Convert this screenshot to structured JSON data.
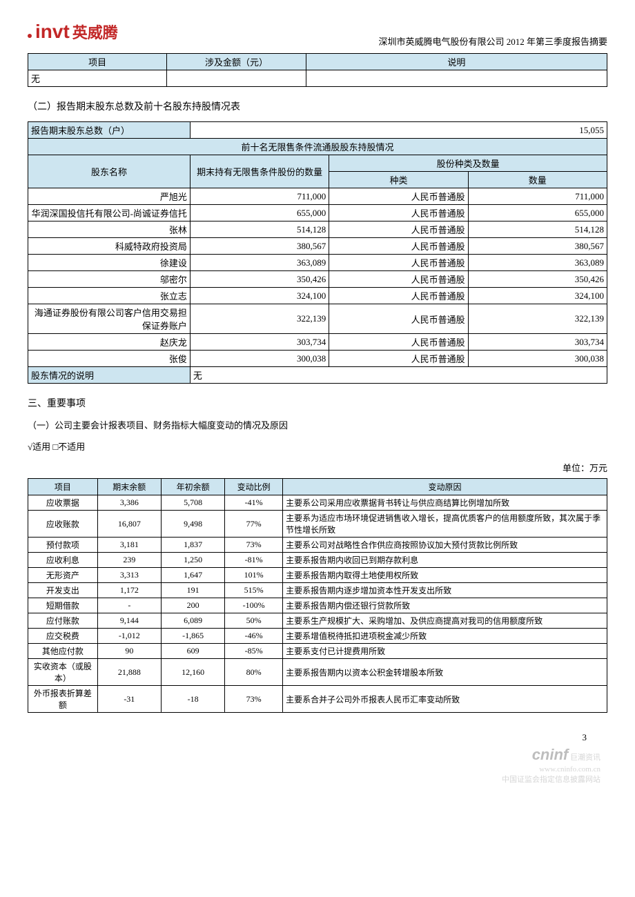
{
  "logo": {
    "en": "invt",
    "cn": "英威腾"
  },
  "doc_title": "深圳市英威腾电气股份有限公司 2012 年第三季度报告摘要",
  "table1": {
    "headers": [
      "项目",
      "涉及金额（元）",
      "说明"
    ],
    "row": [
      "无",
      "",
      ""
    ]
  },
  "section2_title": "（二）报告期末股东总数及前十名股东持股情况表",
  "table2": {
    "total_label": "报告期末股东总数（户）",
    "total_value": "15,055",
    "banner": "前十名无限售条件流通股股东持股情况",
    "col_name": "股东名称",
    "col_qty": "期末持有无限售条件股份的数量",
    "col_type_qty": "股份种类及数量",
    "col_type": "种类",
    "col_num": "数量",
    "rows": [
      {
        "name": "严旭光",
        "qty": "711,000",
        "type": "人民币普通股",
        "num": "711,000"
      },
      {
        "name": "华润深国投信托有限公司-尚诚证券信托",
        "qty": "655,000",
        "type": "人民币普通股",
        "num": "655,000"
      },
      {
        "name": "张林",
        "qty": "514,128",
        "type": "人民币普通股",
        "num": "514,128"
      },
      {
        "name": "科威特政府投资局",
        "qty": "380,567",
        "type": "人民币普通股",
        "num": "380,567"
      },
      {
        "name": "徐建设",
        "qty": "363,089",
        "type": "人民币普通股",
        "num": "363,089"
      },
      {
        "name": "邬密尔",
        "qty": "350,426",
        "type": "人民币普通股",
        "num": "350,426"
      },
      {
        "name": "张立志",
        "qty": "324,100",
        "type": "人民币普通股",
        "num": "324,100"
      },
      {
        "name": "海通证券股份有限公司客户信用交易担保证券账户",
        "qty": "322,139",
        "type": "人民币普通股",
        "num": "322,139"
      },
      {
        "name": "赵庆龙",
        "qty": "303,734",
        "type": "人民币普通股",
        "num": "303,734"
      },
      {
        "name": "张俊",
        "qty": "300,038",
        "type": "人民币普通股",
        "num": "300,038"
      }
    ],
    "note_label": "股东情况的说明",
    "note_value": "无"
  },
  "section3_title": "三、重要事项",
  "section3_1_title": "（一）公司主要会计报表项目、财务指标大幅度变动的情况及原因",
  "apply_text": "√适用 □不适用",
  "unit_text": "单位：万元",
  "table3": {
    "headers": [
      "项目",
      "期末余额",
      "年初余额",
      "变动比例",
      "变动原因"
    ],
    "rows": [
      {
        "c": [
          "应收票据",
          "3,386",
          "5,708",
          "-41%",
          "主要系公司采用应收票据背书转让与供应商结算比例增加所致"
        ]
      },
      {
        "c": [
          "应收账款",
          "16,807",
          "9,498",
          "77%",
          "主要系为适应市场环境促进销售收入增长，提高优质客户的信用额度所致，其次属于季节性增长所致"
        ]
      },
      {
        "c": [
          "预付款项",
          "3,181",
          "1,837",
          "73%",
          "主要系公司对战略性合作供应商按照协议加大预付货款比例所致"
        ]
      },
      {
        "c": [
          "应收利息",
          "239",
          "1,250",
          "-81%",
          "主要系报告期内收回已到期存款利息"
        ]
      },
      {
        "c": [
          "无形资产",
          "3,313",
          "1,647",
          "101%",
          "主要系报告期内取得土地使用权所致"
        ]
      },
      {
        "c": [
          "开发支出",
          "1,172",
          "191",
          "515%",
          "主要系报告期内逐步增加资本性开发支出所致"
        ]
      },
      {
        "c": [
          "短期借款",
          "-",
          "200",
          "-100%",
          "主要系报告期内偿还银行贷款所致"
        ]
      },
      {
        "c": [
          "应付账款",
          "9,144",
          "6,089",
          "50%",
          "主要系生产规模扩大、采购增加、及供应商提高对我司的信用额度所致"
        ]
      },
      {
        "c": [
          "应交税费",
          "-1,012",
          "-1,865",
          "-46%",
          "主要系增值税待抵扣进项税金减少所致"
        ]
      },
      {
        "c": [
          "其他应付款",
          "90",
          "609",
          "-85%",
          "主要系支付已计提费用所致"
        ]
      },
      {
        "c": [
          "实收资本（或股本）",
          "21,888",
          "12,160",
          "80%",
          "主要系报告期内以资本公积金转增股本所致"
        ]
      },
      {
        "c": [
          "外币报表折算差额",
          "-31",
          "-18",
          "73%",
          "主要系合并子公司外币报表人民币汇率变动所致"
        ]
      }
    ]
  },
  "page_num": "3",
  "watermark": {
    "logo": "cninf",
    "cn": "巨潮资讯",
    "url": "www.cninfo.com.cn",
    "txt": "中国证监会指定信息披露网站"
  },
  "col_widths": {
    "t1": [
      "24%",
      "24%",
      "52%"
    ],
    "t2": [
      "28%",
      "24%",
      "24%",
      "24%"
    ],
    "t3": [
      "12%",
      "11%",
      "11%",
      "10%",
      "56%"
    ]
  },
  "colors": {
    "header_bg": "#cde5f0",
    "border": "#000",
    "logo": "#c22727"
  }
}
